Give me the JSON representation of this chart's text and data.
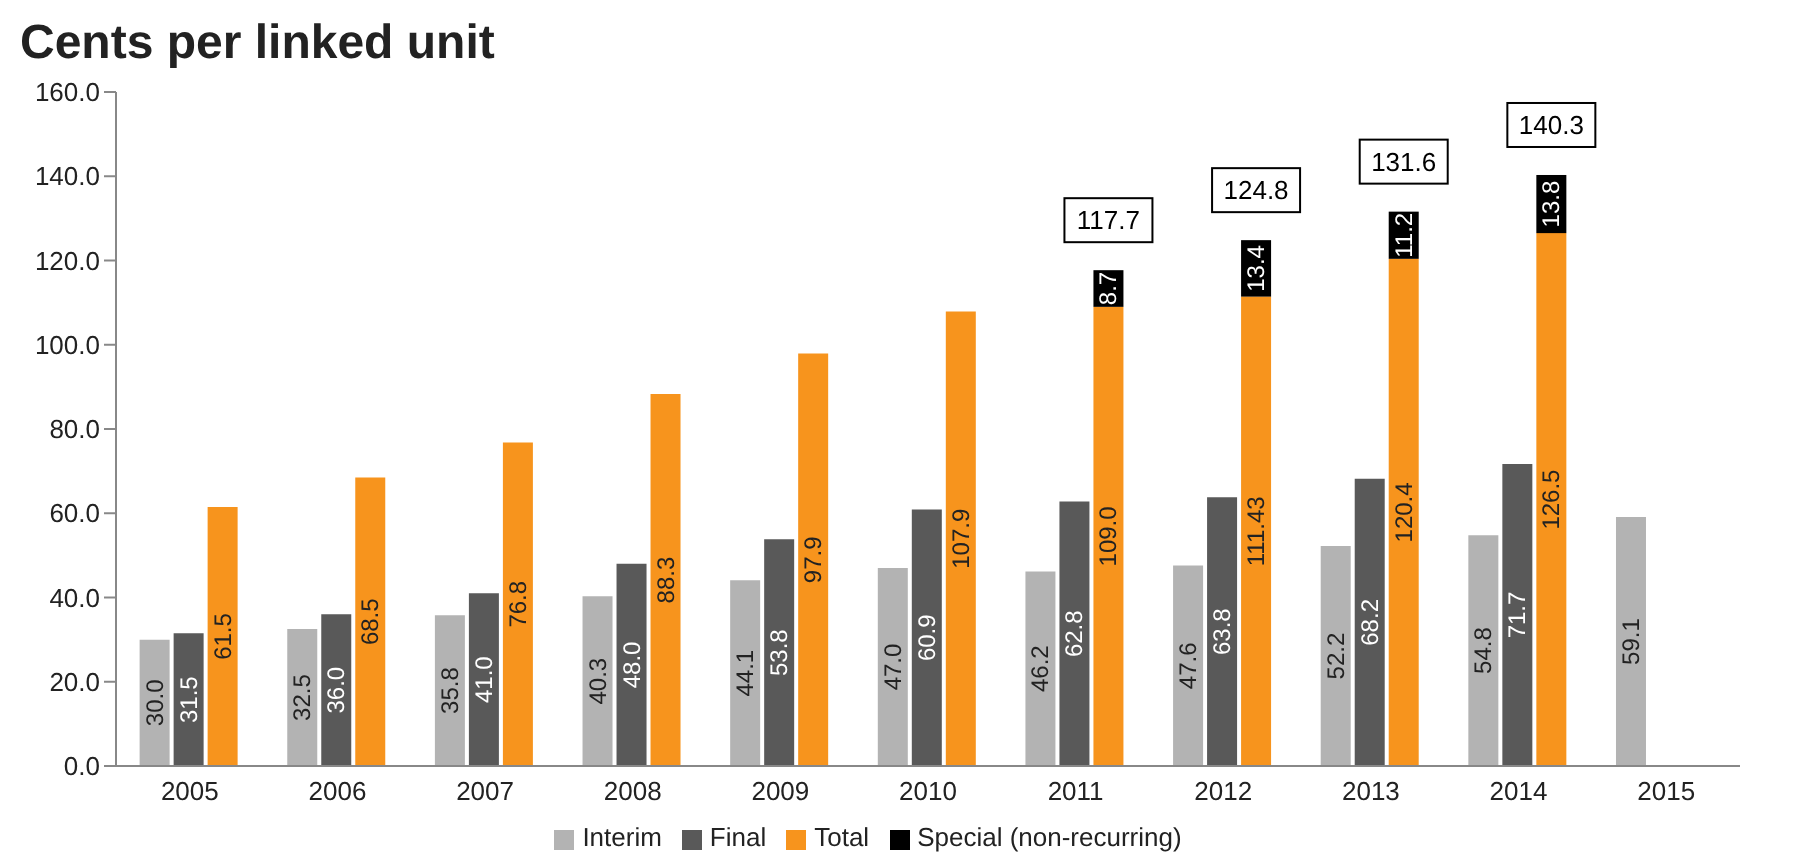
{
  "chart_data": {
    "type": "bar",
    "title": "Cents per linked unit",
    "categories": [
      "2005",
      "2006",
      "2007",
      "2008",
      "2009",
      "2010",
      "2011",
      "2012",
      "2013",
      "2014",
      "2015"
    ],
    "series": [
      {
        "name": "Interim",
        "color": "#b3b3b3",
        "values": [
          30.0,
          32.5,
          35.8,
          40.3,
          44.1,
          47.0,
          46.2,
          47.6,
          52.2,
          54.8,
          59.1
        ],
        "value_labels": [
          "30.0",
          "32.5",
          "35.8",
          "40.3",
          "44.1",
          "47.0",
          "46.2",
          "47.6",
          "52.2",
          "54.8",
          "59.1"
        ]
      },
      {
        "name": "Final",
        "color": "#595959",
        "values": [
          31.5,
          36.0,
          41.0,
          48.0,
          53.8,
          60.9,
          62.8,
          63.8,
          68.2,
          71.7,
          null
        ],
        "value_labels": [
          "31.5",
          "36.0",
          "41.0",
          "48.0",
          "53.8",
          "60.9",
          "62.8",
          "63.8",
          "68.2",
          "71.7",
          null
        ]
      },
      {
        "name": "Total",
        "color": "#f7941d",
        "values": [
          61.5,
          68.5,
          76.8,
          88.3,
          97.9,
          107.9,
          109.0,
          111.43,
          120.4,
          126.5,
          null
        ],
        "value_labels": [
          "61.5",
          "68.5",
          "76.8",
          "88.3",
          "97.9",
          "107.9",
          "109.0",
          "111.43",
          "120.4",
          "126.5",
          null
        ]
      },
      {
        "name": "Special (non-recurring)",
        "color": "#000000",
        "values": [
          null,
          null,
          null,
          null,
          null,
          null,
          8.7,
          13.4,
          11.2,
          13.8,
          null
        ],
        "base": [
          null,
          null,
          null,
          null,
          null,
          null,
          109.0,
          111.43,
          120.4,
          126.5,
          null
        ],
        "value_labels": [
          null,
          null,
          null,
          null,
          null,
          null,
          "8.7",
          "13.4",
          "11.2",
          "13.8",
          null
        ]
      }
    ],
    "annotations": [
      "117.7",
      "124.8",
      "131.6",
      "140.3"
    ],
    "ylim": [
      0,
      160
    ],
    "yticks": [
      {
        "value": 0,
        "label": "0.0"
      },
      {
        "value": 20,
        "label": "20.0"
      },
      {
        "value": 40,
        "label": "40.0"
      },
      {
        "value": 60,
        "label": "60.0"
      },
      {
        "value": 80,
        "label": "80.0"
      },
      {
        "value": 100,
        "label": "100.0"
      },
      {
        "value": 120,
        "label": "120.0"
      },
      {
        "value": 140,
        "label": "140.0"
      },
      {
        "value": 160,
        "label": "160.0"
      }
    ],
    "grid": false,
    "legend": "bottom"
  }
}
